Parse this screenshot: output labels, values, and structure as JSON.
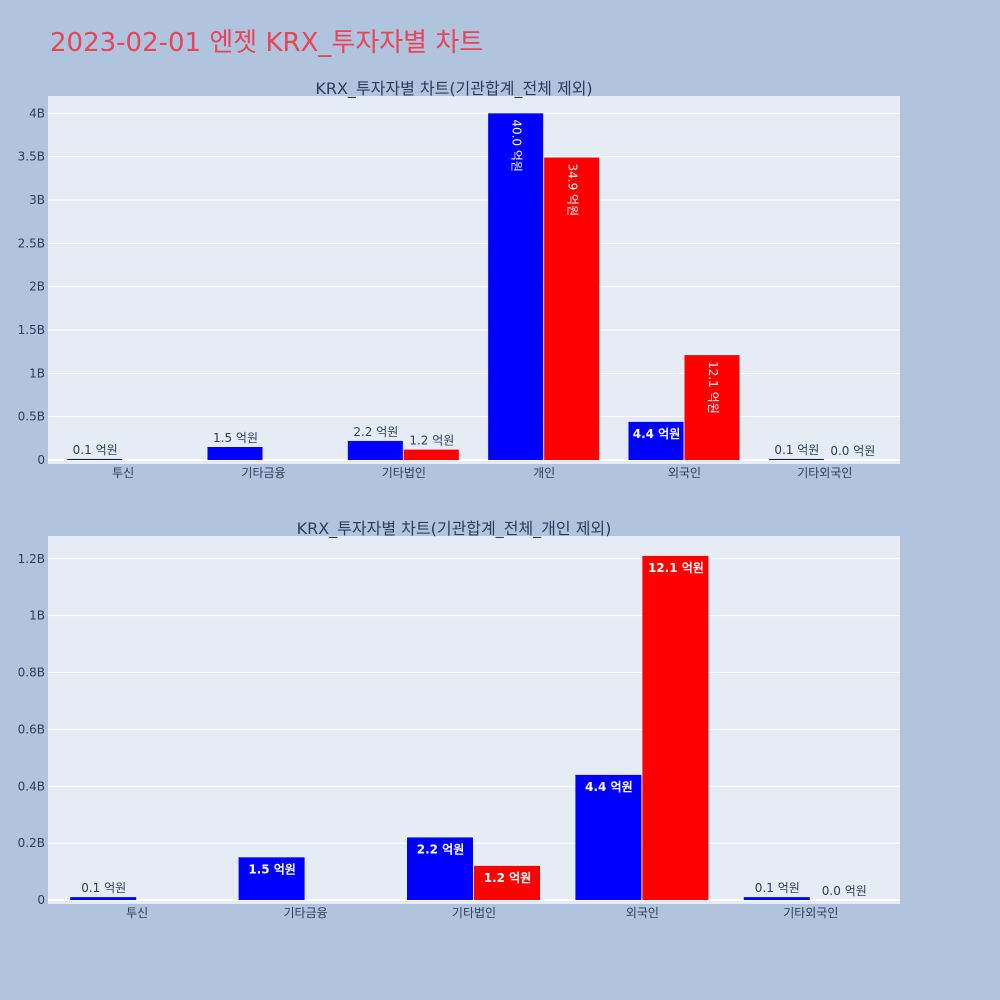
{
  "page_title": "2023-02-01 엔젯 KRX_투자자별 차트",
  "colors": {
    "background": "#b0c4de",
    "plot_bg": "#e5ecf6",
    "title": "#e8445a",
    "series_a": "#0000ff",
    "series_b": "#ff0000"
  },
  "chart_data": [
    {
      "type": "bar",
      "title": "KRX_투자자별 차트(기관합계_전체 제외)",
      "categories": [
        "투신",
        "기타금융",
        "기타법인",
        "개인",
        "외국인",
        "기타외국인"
      ],
      "ylim": [
        0,
        4200000000
      ],
      "yticks": [
        0,
        500000000,
        1000000000,
        1500000000,
        2000000000,
        2500000000,
        3000000000,
        3500000000,
        4000000000
      ],
      "ytick_labels": [
        "0",
        "0.5B",
        "1B",
        "1.5B",
        "2B",
        "2.5B",
        "3B",
        "3.5B",
        "4B"
      ],
      "grid": true,
      "series": [
        {
          "color": "#0000ff",
          "values": [
            10000000,
            150000000,
            220000000,
            4000000000,
            440000000,
            10000000
          ],
          "labels": [
            "0.1 억원",
            "1.5 억원",
            "2.2 억원",
            "40.0 억원",
            "4.4 억원",
            "0.1 억원"
          ]
        },
        {
          "color": "#ff0000",
          "values": [
            0,
            0,
            120000000,
            3490000000,
            1210000000,
            0
          ],
          "labels": [
            "",
            "",
            "1.2 억원",
            "34.9 억원",
            "12.1 억원",
            "0.0 억원"
          ]
        }
      ]
    },
    {
      "type": "bar",
      "title": "KRX_투자자별 차트(기관합계_전체_개인 제외)",
      "categories": [
        "투신",
        "기타금융",
        "기타법인",
        "외국인",
        "기타외국인"
      ],
      "ylim": [
        0,
        1280000000
      ],
      "yticks": [
        0,
        200000000,
        400000000,
        600000000,
        800000000,
        1000000000,
        1200000000
      ],
      "ytick_labels": [
        "0",
        "0.2B",
        "0.4B",
        "0.6B",
        "0.8B",
        "1B",
        "1.2B"
      ],
      "grid": true,
      "series": [
        {
          "color": "#0000ff",
          "values": [
            10000000,
            150000000,
            220000000,
            440000000,
            10000000
          ],
          "labels": [
            "0.1 억원",
            "1.5 억원",
            "2.2 억원",
            "4.4 억원",
            "0.1 억원"
          ]
        },
        {
          "color": "#ff0000",
          "values": [
            0,
            0,
            120000000,
            1210000000,
            0
          ],
          "labels": [
            "",
            "",
            "1.2 억원",
            "12.1 억원",
            "0.0 억원"
          ]
        }
      ]
    }
  ]
}
